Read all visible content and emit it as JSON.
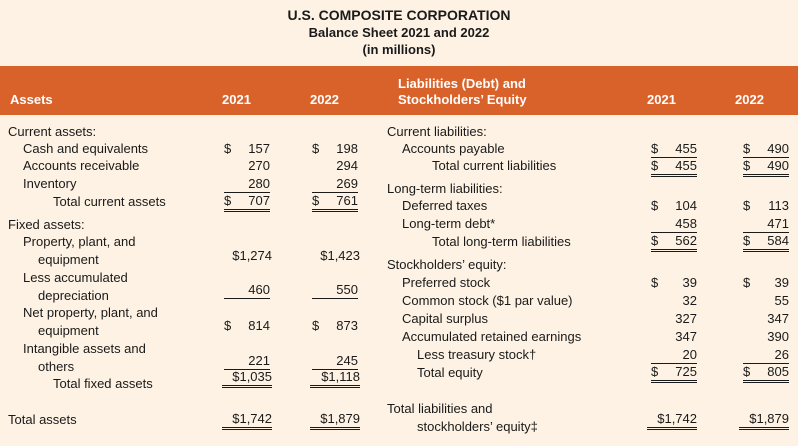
{
  "header": {
    "company": "U.S. COMPOSITE CORPORATION",
    "subtitle": "Balance Sheet 2021 and 2022",
    "units": "(in millions)",
    "assets_col": "Assets",
    "liab_col_line1": "Liabilities (Debt) and",
    "liab_col_line2": "Stockholders’ Equity",
    "year1": "2021",
    "year2": "2022"
  },
  "assets": {
    "current_label": "Current assets:",
    "cash": {
      "label": "Cash and equivalents",
      "y2021": "157",
      "y2022": "198"
    },
    "receivable": {
      "label": "Accounts receivable",
      "y2021": "270",
      "y2022": "294"
    },
    "inventory": {
      "label": "Inventory",
      "y2021": "280",
      "y2022": "269"
    },
    "total_current": {
      "label": "Total current assets",
      "y2021": "707",
      "y2022": "761"
    },
    "fixed_label": "Fixed assets:",
    "ppe": {
      "label1": "Property, plant, and",
      "label2": "equipment",
      "y2021": "$1,274",
      "y2022": "$1,423"
    },
    "accum_dep": {
      "label1": "Less accumulated",
      "label2": "depreciation",
      "y2021": "460",
      "y2022": "550"
    },
    "net_ppe": {
      "label1": "Net property, plant, and",
      "label2": "equipment",
      "y2021": "814",
      "y2022": "873"
    },
    "intangible": {
      "label1": "Intangible assets and",
      "label2": "others",
      "y2021": "221",
      "y2022": "245"
    },
    "total_fixed": {
      "label": "Total fixed assets",
      "y2021": "$1,035",
      "y2022": "$1,118"
    },
    "total": {
      "label": "Total assets",
      "y2021": "$1,742",
      "y2022": "$1,879"
    }
  },
  "liabilities": {
    "current_label": "Current liabilities:",
    "payable": {
      "label": "Accounts payable",
      "y2021": "455",
      "y2022": "490"
    },
    "total_current": {
      "label": "Total current liabilities",
      "y2021": "455",
      "y2022": "490"
    },
    "longterm_label": "Long-term liabilities:",
    "deferred": {
      "label": "Deferred taxes",
      "y2021": "104",
      "y2022": "113"
    },
    "debt": {
      "label": "Long-term debt*",
      "y2021": "458",
      "y2022": "471"
    },
    "total_longterm": {
      "label": "Total long-term liabilities",
      "y2021": "562",
      "y2022": "584"
    },
    "equity_label": "Stockholders’ equity:",
    "preferred": {
      "label": "Preferred stock",
      "y2021": "39",
      "y2022": "39"
    },
    "common": {
      "label": "Common stock ($1 par value)",
      "y2021": "32",
      "y2022": "55"
    },
    "surplus": {
      "label": "Capital surplus",
      "y2021": "327",
      "y2022": "347"
    },
    "retained": {
      "label": "Accumulated retained earnings",
      "y2021": "347",
      "y2022": "390"
    },
    "treasury": {
      "label": "Less treasury stock†",
      "y2021": "20",
      "y2022": "26"
    },
    "total_equity": {
      "label": "Total equity",
      "y2021": "725",
      "y2022": "805"
    },
    "total": {
      "label1": "Total liabilities and",
      "label2": "stockholders’ equity‡",
      "y2021": "$1,742",
      "y2022": "$1,879"
    }
  },
  "currency_symbol": "$"
}
